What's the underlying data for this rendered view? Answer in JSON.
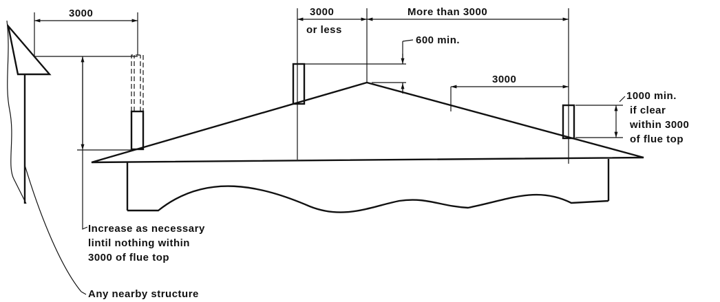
{
  "dimensions": {
    "left_spacing": "3000",
    "center_spacing": [
      "3000",
      "or less"
    ],
    "center_right": "More than 3000",
    "ridge_height": "600 min.",
    "right_spacing": "3000",
    "right_height": [
      "1000 min.",
      "if clear",
      "within 3000",
      "of flue top"
    ]
  },
  "notes": {
    "increase": [
      "Increase as necessary",
      "lintil nothing within",
      "3000 of flue top"
    ],
    "structure": "Any nearby structure"
  }
}
